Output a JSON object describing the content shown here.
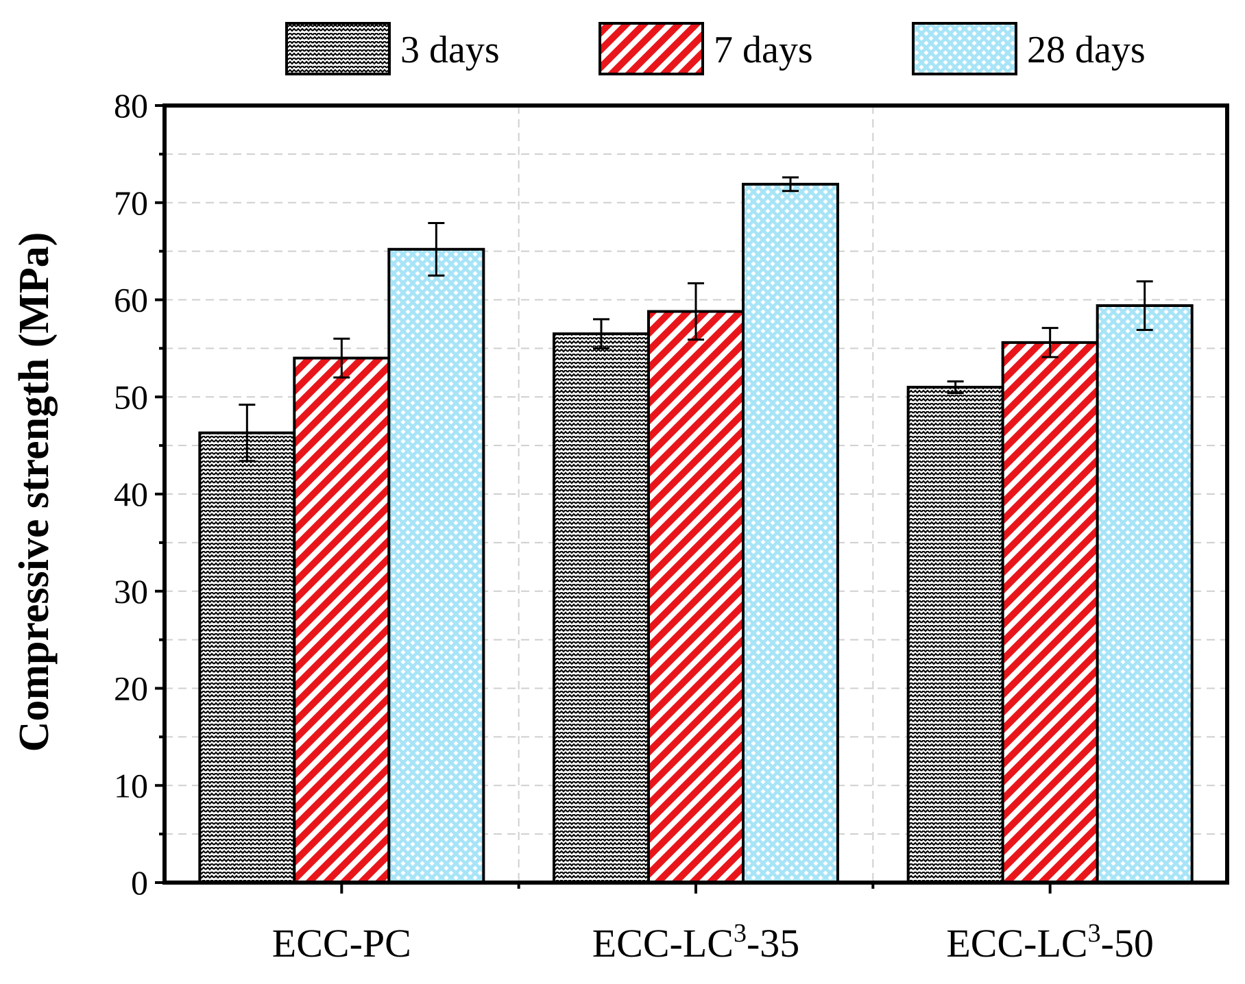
{
  "chart_data": {
    "type": "bar",
    "title": "",
    "xlabel": "",
    "ylabel": "Compressive strength (MPa)",
    "ylim": [
      0,
      80
    ],
    "yticks": [
      "0",
      "10",
      "20",
      "30",
      "40",
      "50",
      "60",
      "70",
      "80"
    ],
    "grid": true,
    "legend_position": "top",
    "categories": [
      {
        "base": "ECC-PC",
        "sup": "",
        "suffix": ""
      },
      {
        "base": "ECC-LC",
        "sup": "3",
        "suffix": "-35"
      },
      {
        "base": "ECC-LC",
        "sup": "3",
        "suffix": "-50"
      }
    ],
    "series": [
      {
        "name": "3 days",
        "pattern": "zigzag",
        "color": "#000000",
        "values": [
          46.3,
          56.5,
          51.0
        ],
        "errors": [
          2.9,
          1.5,
          0.6
        ]
      },
      {
        "name": "7 days",
        "pattern": "diagonal-stripes",
        "color": "#e8161b",
        "values": [
          54.0,
          58.8,
          55.6
        ],
        "errors": [
          2.0,
          2.9,
          1.5
        ]
      },
      {
        "name": "28 days",
        "pattern": "dots",
        "color": "#a8e4f7",
        "values": [
          65.2,
          71.9,
          59.4
        ],
        "errors": [
          2.7,
          0.7,
          2.5
        ]
      }
    ]
  }
}
